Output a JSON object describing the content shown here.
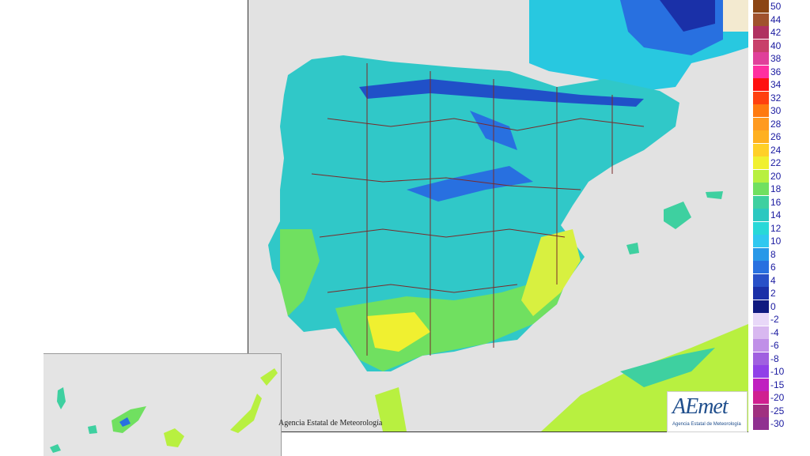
{
  "credit_text": "Agencia Estatal de Meteorología",
  "logo": {
    "word": "AEmet",
    "subtitle": "Agencia Estatal de Meteorología"
  },
  "legend": [
    {
      "label": "50",
      "color": "#8b4513"
    },
    {
      "label": "44",
      "color": "#a0522d"
    },
    {
      "label": "42",
      "color": "#b03060"
    },
    {
      "label": "40",
      "color": "#c8406a"
    },
    {
      "label": "38",
      "color": "#e0409a"
    },
    {
      "label": "36",
      "color": "#ff2fa0"
    },
    {
      "label": "34",
      "color": "#ff1010"
    },
    {
      "label": "32",
      "color": "#ff4010"
    },
    {
      "label": "30",
      "color": "#ff7a10"
    },
    {
      "label": "28",
      "color": "#ff9a20"
    },
    {
      "label": "26",
      "color": "#ffb020"
    },
    {
      "label": "24",
      "color": "#ffd028"
    },
    {
      "label": "22",
      "color": "#f0f030"
    },
    {
      "label": "20",
      "color": "#b8f040"
    },
    {
      "label": "18",
      "color": "#70e060"
    },
    {
      "label": "16",
      "color": "#3ed0a0"
    },
    {
      "label": "14",
      "color": "#2cc8c0"
    },
    {
      "label": "12",
      "color": "#28d8d8"
    },
    {
      "label": "10",
      "color": "#30c8f0"
    },
    {
      "label": "8",
      "color": "#2898e8"
    },
    {
      "label": "6",
      "color": "#2870e0"
    },
    {
      "label": "4",
      "color": "#2850c8"
    },
    {
      "label": "2",
      "color": "#1a30a8"
    },
    {
      "label": "0",
      "color": "#101a80"
    },
    {
      "label": "-2",
      "color": "#e8d8f8"
    },
    {
      "label": "-4",
      "color": "#d8b8f0"
    },
    {
      "label": "-6",
      "color": "#c090e8"
    },
    {
      "label": "-8",
      "color": "#a060e0"
    },
    {
      "label": "-10",
      "color": "#9040e8"
    },
    {
      "label": "-15",
      "color": "#c020c0"
    },
    {
      "label": "-20",
      "color": "#d02090"
    },
    {
      "label": "-25",
      "color": "#a03080"
    },
    {
      "label": "-30",
      "color": "#903090"
    }
  ]
}
